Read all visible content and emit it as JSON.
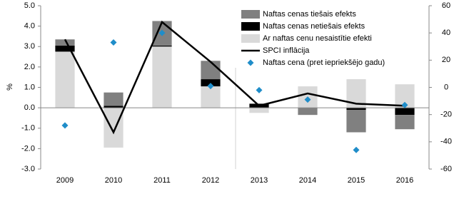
{
  "chart_data": {
    "type": "bar",
    "y_label": "%",
    "categories": [
      "2009",
      "2010",
      "2011",
      "2012",
      "2013",
      "2014",
      "2015",
      "2016"
    ],
    "ylim": [
      -3,
      5
    ],
    "yticks": [
      {
        "value": -3,
        "label": "-3.0"
      },
      {
        "value": -2,
        "label": "-2.0"
      },
      {
        "value": -1,
        "label": "-1.0"
      },
      {
        "value": 0,
        "label": "0.0"
      },
      {
        "value": 1,
        "label": "1.0"
      },
      {
        "value": 2,
        "label": "2.0"
      },
      {
        "value": 3,
        "label": "3.0"
      },
      {
        "value": 4,
        "label": "4.0"
      },
      {
        "value": 5,
        "label": "5.0"
      }
    ],
    "y2lim": [
      -60,
      60
    ],
    "y2ticks": [
      -60,
      -40,
      -20,
      0,
      20,
      40,
      60
    ],
    "series": [
      {
        "name": "Naftas cenas tiešais efekts",
        "type": "bar",
        "color": "#808080",
        "values": [
          0.3,
          0.65,
          1.2,
          0.9,
          0,
          -0.35,
          -1.1,
          -0.7
        ]
      },
      {
        "name": "Naftas cenas netiešais efekts",
        "type": "bar",
        "color": "#000000",
        "values": [
          0.3,
          0.1,
          0.05,
          0.35,
          0.2,
          0,
          -0.1,
          -0.35
        ]
      },
      {
        "name": "Ar naftas cenu nesaistītie efekti",
        "type": "bar",
        "color": "#d9d9d9",
        "values": [
          2.75,
          -1.95,
          3.0,
          1.05,
          -0.25,
          1.05,
          1.4,
          1.15
        ]
      },
      {
        "name": "SPCI inflācija",
        "type": "line",
        "color": "#000000",
        "values": [
          3.35,
          -1.2,
          4.2,
          2.25,
          0.1,
          0.7,
          0.2,
          0.1
        ]
      },
      {
        "name": "Naftas cena (pret iepriekšējo gadu)",
        "type": "scatter",
        "axis": "y2",
        "color": "#1f8dc9",
        "values": [
          -28,
          33,
          40,
          1,
          -2,
          -9,
          -46,
          -13
        ]
      }
    ]
  }
}
